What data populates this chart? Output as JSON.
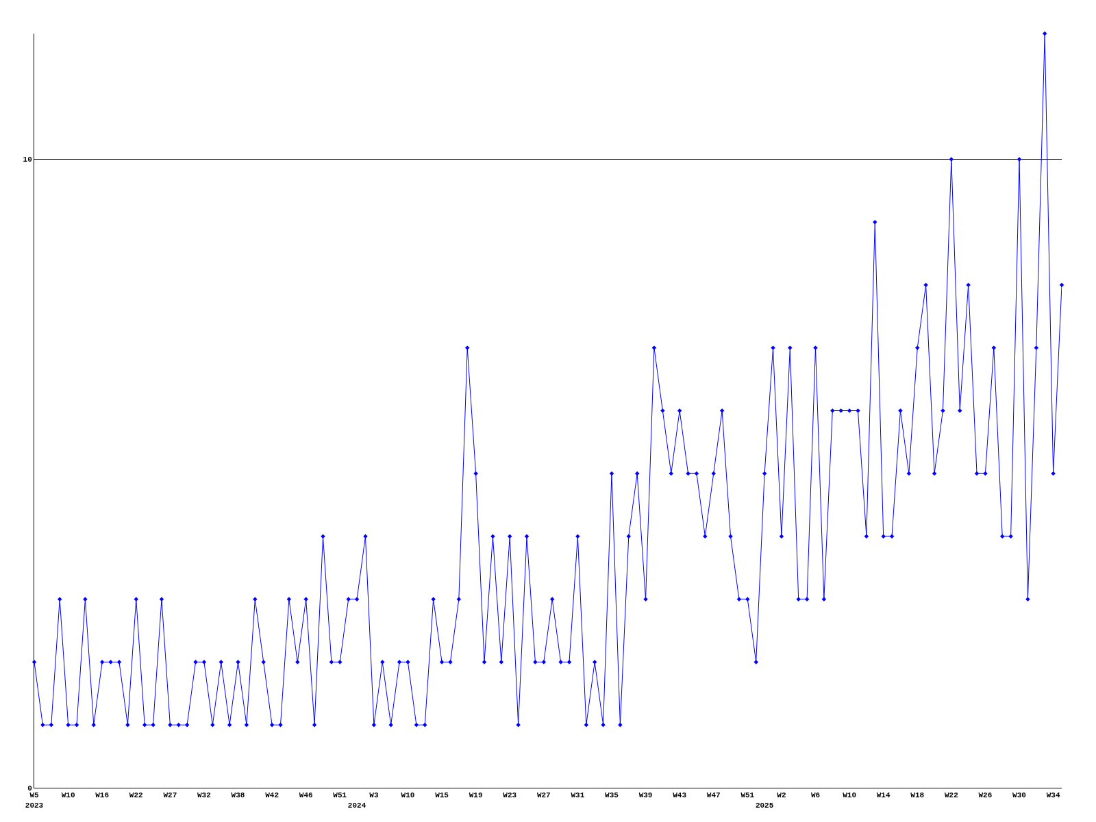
{
  "chart_data": {
    "type": "line",
    "categories": [
      "W5\n2023",
      null,
      null,
      null,
      "W10",
      null,
      null,
      null,
      "W16",
      null,
      null,
      null,
      "W22",
      null,
      null,
      null,
      "W27",
      null,
      null,
      null,
      "W32",
      null,
      null,
      null,
      "W38",
      null,
      null,
      null,
      "W42",
      null,
      null,
      null,
      "W46",
      null,
      null,
      null,
      "W51",
      null,
      "\n2024",
      null,
      "W3",
      null,
      null,
      null,
      "W10",
      null,
      null,
      null,
      "W15",
      null,
      null,
      null,
      "W19",
      null,
      null,
      null,
      "W23",
      null,
      null,
      null,
      "W27",
      null,
      null,
      null,
      "W31",
      null,
      null,
      null,
      "W35",
      null,
      null,
      null,
      "W39",
      null,
      null,
      null,
      "W43",
      null,
      null,
      null,
      "W47",
      null,
      null,
      null,
      "W51",
      null,
      "\n2025",
      null,
      "W2",
      null,
      null,
      null,
      "W6",
      null,
      null,
      null,
      "W10",
      null,
      null,
      null,
      "W14",
      null,
      null,
      null,
      "W18",
      null,
      null,
      null,
      "W22",
      null,
      null,
      null,
      "W26",
      null,
      null,
      null,
      "W30",
      null,
      null,
      null,
      "W34",
      null
    ],
    "series": [
      {
        "color": "#0000ff",
        "values": [
          2,
          1,
          1,
          3,
          1,
          1,
          3,
          1,
          2,
          2,
          2,
          1,
          3,
          1,
          1,
          3,
          1,
          1,
          1,
          2,
          2,
          1,
          2,
          1,
          2,
          1,
          3,
          2,
          1,
          1,
          3,
          2,
          3,
          1,
          4,
          2,
          2,
          3,
          3,
          4,
          1,
          2,
          1,
          2,
          2,
          1,
          1,
          3,
          2,
          2,
          3,
          7,
          5,
          2,
          4,
          2,
          4,
          1,
          4,
          2,
          2,
          3,
          2,
          2,
          4,
          1,
          2,
          1,
          5,
          1,
          4,
          5,
          3,
          7,
          6,
          5,
          6,
          5,
          5,
          4,
          5,
          6,
          4,
          3,
          3,
          2,
          5,
          7,
          4,
          7,
          3,
          3,
          7,
          3,
          6,
          6,
          6,
          6,
          4,
          9,
          4,
          4,
          6,
          5,
          7,
          8,
          5,
          6,
          10,
          6,
          8,
          5,
          5,
          7,
          4,
          4,
          10,
          3,
          7,
          12,
          5,
          8
        ]
      }
    ],
    "ylim": [
      0,
      12
    ],
    "yticks": [
      0,
      10
    ],
    "grid": "y",
    "marker": "diamond",
    "line_style": "solid"
  }
}
